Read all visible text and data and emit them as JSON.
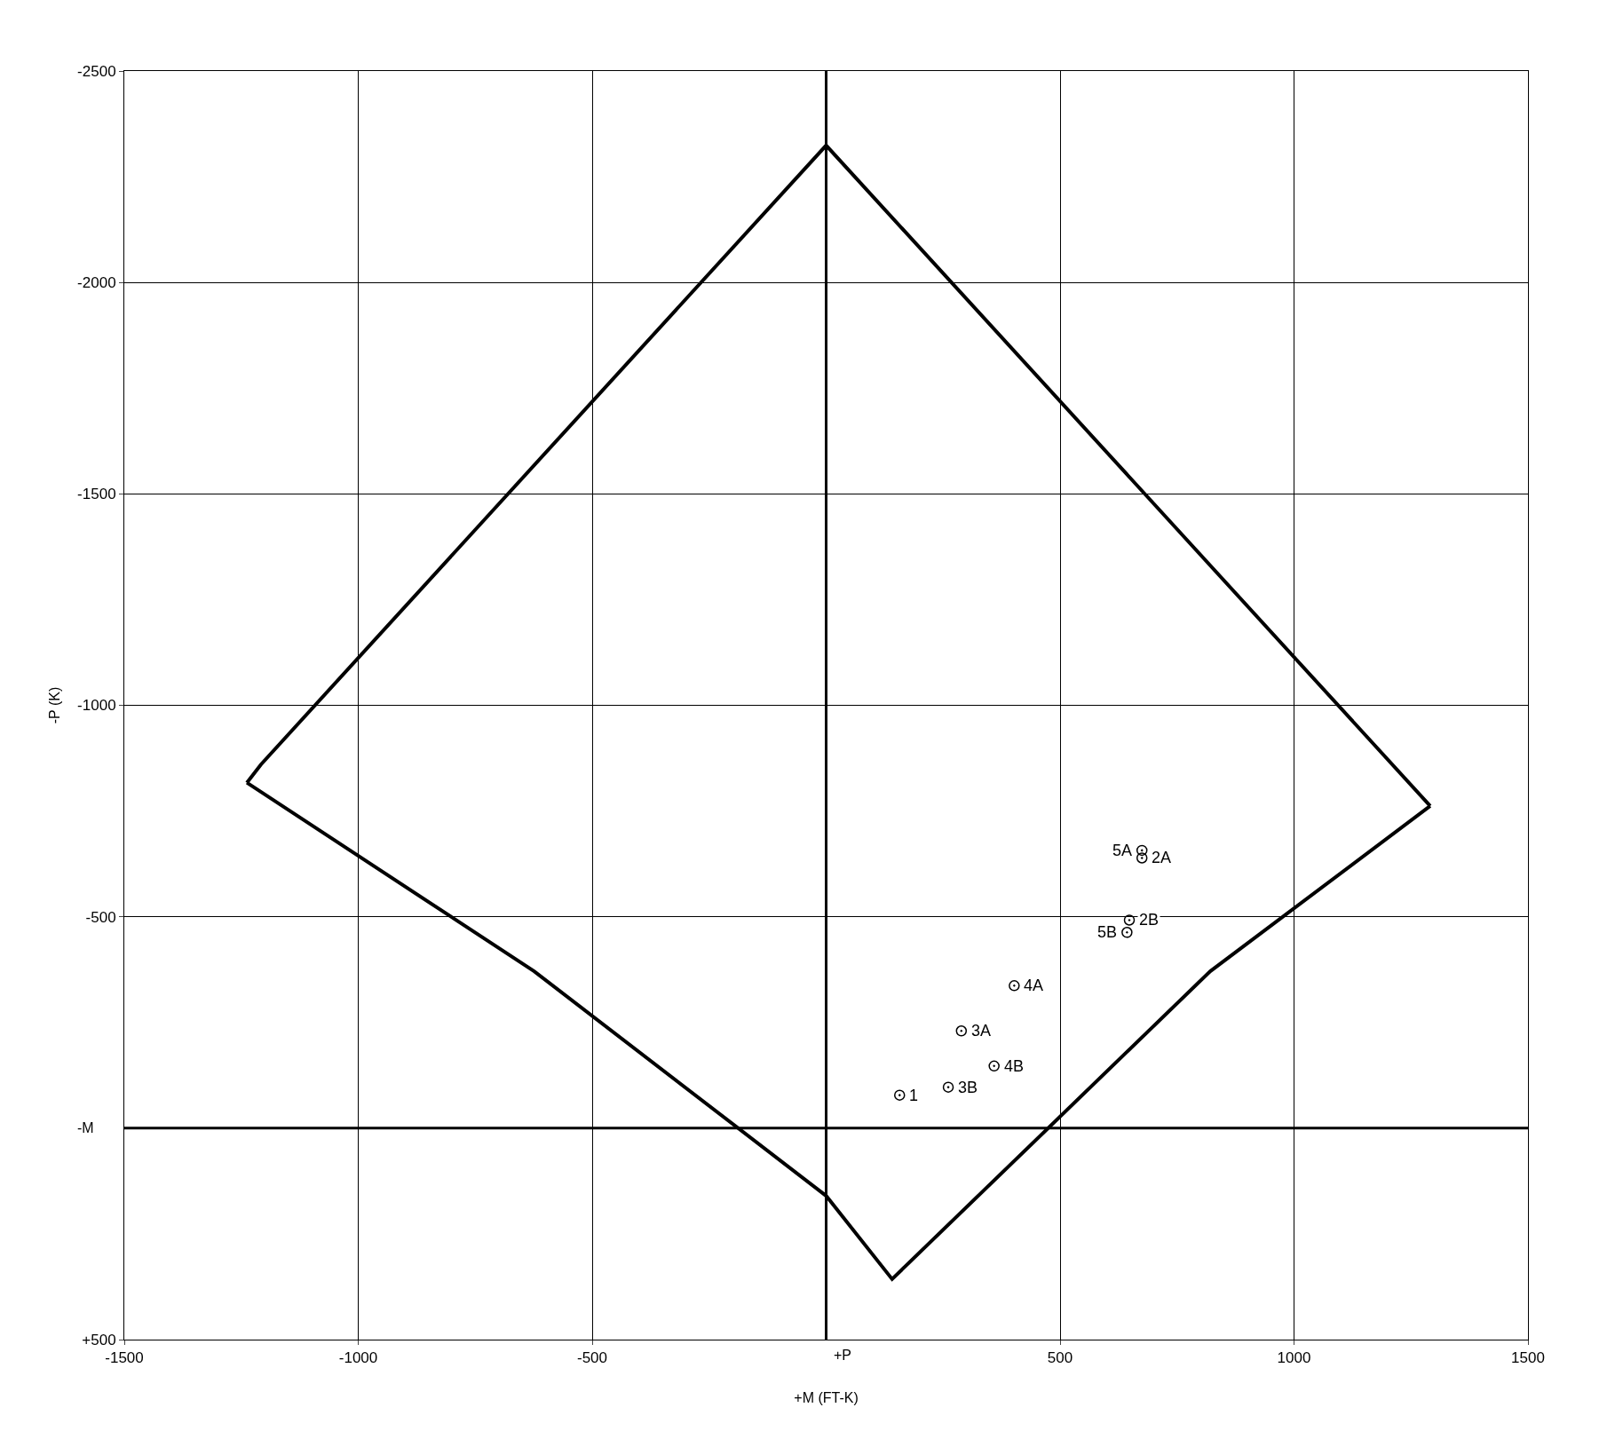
{
  "chart_data": {
    "type": "line",
    "ref_lines": [
      {
        "axis": "x",
        "value": 0,
        "label": "+P",
        "color": "#000000"
      },
      {
        "axis": "y",
        "value": 0,
        "label": "-M",
        "color": "#000000"
      }
    ],
    "xlabel": "+M (FT-K)",
    "ylabel": "-P (K)",
    "series": [
      {
        "color": "#000000",
        "marker": "none",
        "line_style": "solid",
        "x": [
          -1238,
          -1208,
          0,
          1291
        ],
        "values": [
          -817,
          -860,
          -2324,
          -762
        ]
      },
      {
        "color": "#000000",
        "marker": "none",
        "line_style": "solid",
        "x": [
          -1238,
          -624,
          -14,
          0,
          141,
          821,
          1291
        ],
        "values": [
          -817,
          -371,
          148,
          160,
          357,
          -371,
          -762
        ]
      },
      {
        "type": "scatter",
        "color": "#000000",
        "marker": "circle",
        "x": [
          157,
          261,
          359,
          289,
          402,
          643,
          648,
          675,
          675
        ],
        "values": [
          -78,
          -97,
          -147,
          -230,
          -337,
          -463,
          -492,
          -657,
          -639
        ]
      }
    ],
    "annotations": [
      {
        "text": "1",
        "x": 157,
        "y": -78
      },
      {
        "text": "3B",
        "x": 261,
        "y": -97
      },
      {
        "text": "4B",
        "x": 359,
        "y": -147
      },
      {
        "text": "3A",
        "x": 289,
        "y": -230
      },
      {
        "text": "4A",
        "x": 402,
        "y": -337
      },
      {
        "text": "5B",
        "x": 643,
        "y": -463
      },
      {
        "text": "2B",
        "x": 648,
        "y": -492
      },
      {
        "text": "5A",
        "x": 675,
        "y": -657
      },
      {
        "text": "2A",
        "x": 675,
        "y": -639
      }
    ],
    "xlim": [
      -1500,
      1500
    ],
    "ylim": [
      500,
      -2500
    ],
    "xticks": [
      -1500,
      -1000,
      -500,
      500,
      1000,
      1500
    ],
    "yticks": [
      -2500,
      -2000,
      -1500,
      -1000,
      -500,
      {
        "value": 500,
        "label": "+500"
      }
    ],
    "grid": true
  }
}
